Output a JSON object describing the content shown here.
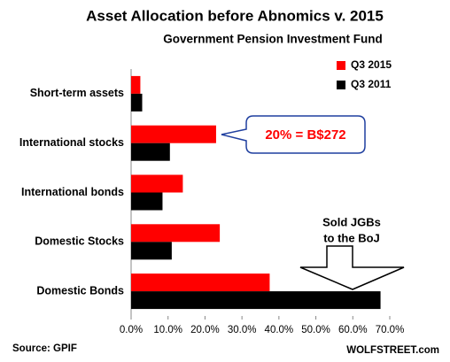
{
  "chart_data": {
    "type": "bar",
    "orientation": "horizontal",
    "title": "Asset Allocation before Abnomics v. 2015",
    "subtitle": "Government Pension Investment Fund",
    "categories": [
      "Short-term assets",
      "International stocks",
      "International bonds",
      "Domestic Stocks",
      "Domestic Bonds"
    ],
    "series": [
      {
        "name": "Q3 2015",
        "color": "#ff0000",
        "values": [
          2.5,
          23,
          14,
          24,
          37.5
        ]
      },
      {
        "name": "Q3 2011",
        "color": "#000000",
        "values": [
          3,
          10.5,
          8.5,
          11,
          67.5
        ]
      }
    ],
    "xlim": [
      0,
      70
    ],
    "xticks": [
      {
        "value": 0,
        "label": "0.0%"
      },
      {
        "value": 10,
        "label": "10.0%"
      },
      {
        "value": 20,
        "label": "20.0%"
      },
      {
        "value": 30,
        "label": "30.0%"
      },
      {
        "value": 40,
        "label": "40.0%"
      },
      {
        "value": 50,
        "label": "50.0%"
      },
      {
        "value": 60,
        "label": "60.0%"
      },
      {
        "value": 70,
        "label": "70.0%"
      }
    ],
    "grid": false,
    "legend": "top-right",
    "annotations": [
      "20% = B$272",
      "Sold JGBs",
      "to the BoJ"
    ],
    "source": "Source: GPIF",
    "credit": "WOLFSTREET.com"
  }
}
